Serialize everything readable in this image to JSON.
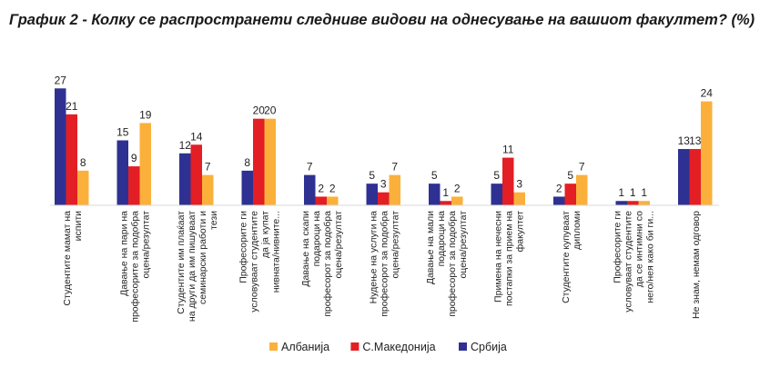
{
  "chart_data": {
    "type": "bar",
    "title": "График 2 - Колку се распространети следниве видови на однесување на вашиот факултет? (%)",
    "categories": [
      [
        "Студентите мамат на",
        "испити"
      ],
      [
        "Давање на пари на",
        "професорите за подобра",
        "оцена/резултат"
      ],
      [
        "Студентите им плаќаат",
        "на други да им пишуваат",
        "семинарски работи и",
        "тези"
      ],
      [
        "Професорите ги",
        "условуваат студентите",
        "да ја купат",
        "нивната/нивните..."
      ],
      [
        "Давање на скапи",
        "подароци на",
        "професорот за подобра",
        "оцена/резултат"
      ],
      [
        "Нудење на услуги на",
        "професорот за подобра",
        "оцена/резултат"
      ],
      [
        "Давање на мали",
        "подароци на",
        "професорот за подобра",
        "оцена/резултат"
      ],
      [
        "Примена на нечесни",
        "постапки за прием на",
        "факултет"
      ],
      [
        "Студентите купуваат",
        "дипломи"
      ],
      [
        "Професорите ги",
        "условуваат студентите",
        "да се интимни со",
        "него/нея како би ги..."
      ],
      [
        "Не знам, немам одговор"
      ]
    ],
    "series": [
      {
        "name": "Србија",
        "color": "#2e3192",
        "values": [
          27,
          15,
          12,
          8,
          7,
          5,
          5,
          5,
          2,
          1,
          13
        ]
      },
      {
        "name": "С.Македонија",
        "color": "#e31e24",
        "values": [
          21,
          9,
          14,
          20,
          2,
          3,
          1,
          11,
          5,
          1,
          13
        ]
      },
      {
        "name": "Албанија",
        "color": "#fbb03b",
        "values": [
          8,
          19,
          7,
          20,
          2,
          7,
          2,
          3,
          7,
          1,
          24
        ]
      }
    ],
    "legend_order": [
      "Албанија",
      "С.Македонија",
      "Србија"
    ],
    "legend_position": "bottom",
    "ylim": [
      0,
      30
    ],
    "grid": false
  }
}
